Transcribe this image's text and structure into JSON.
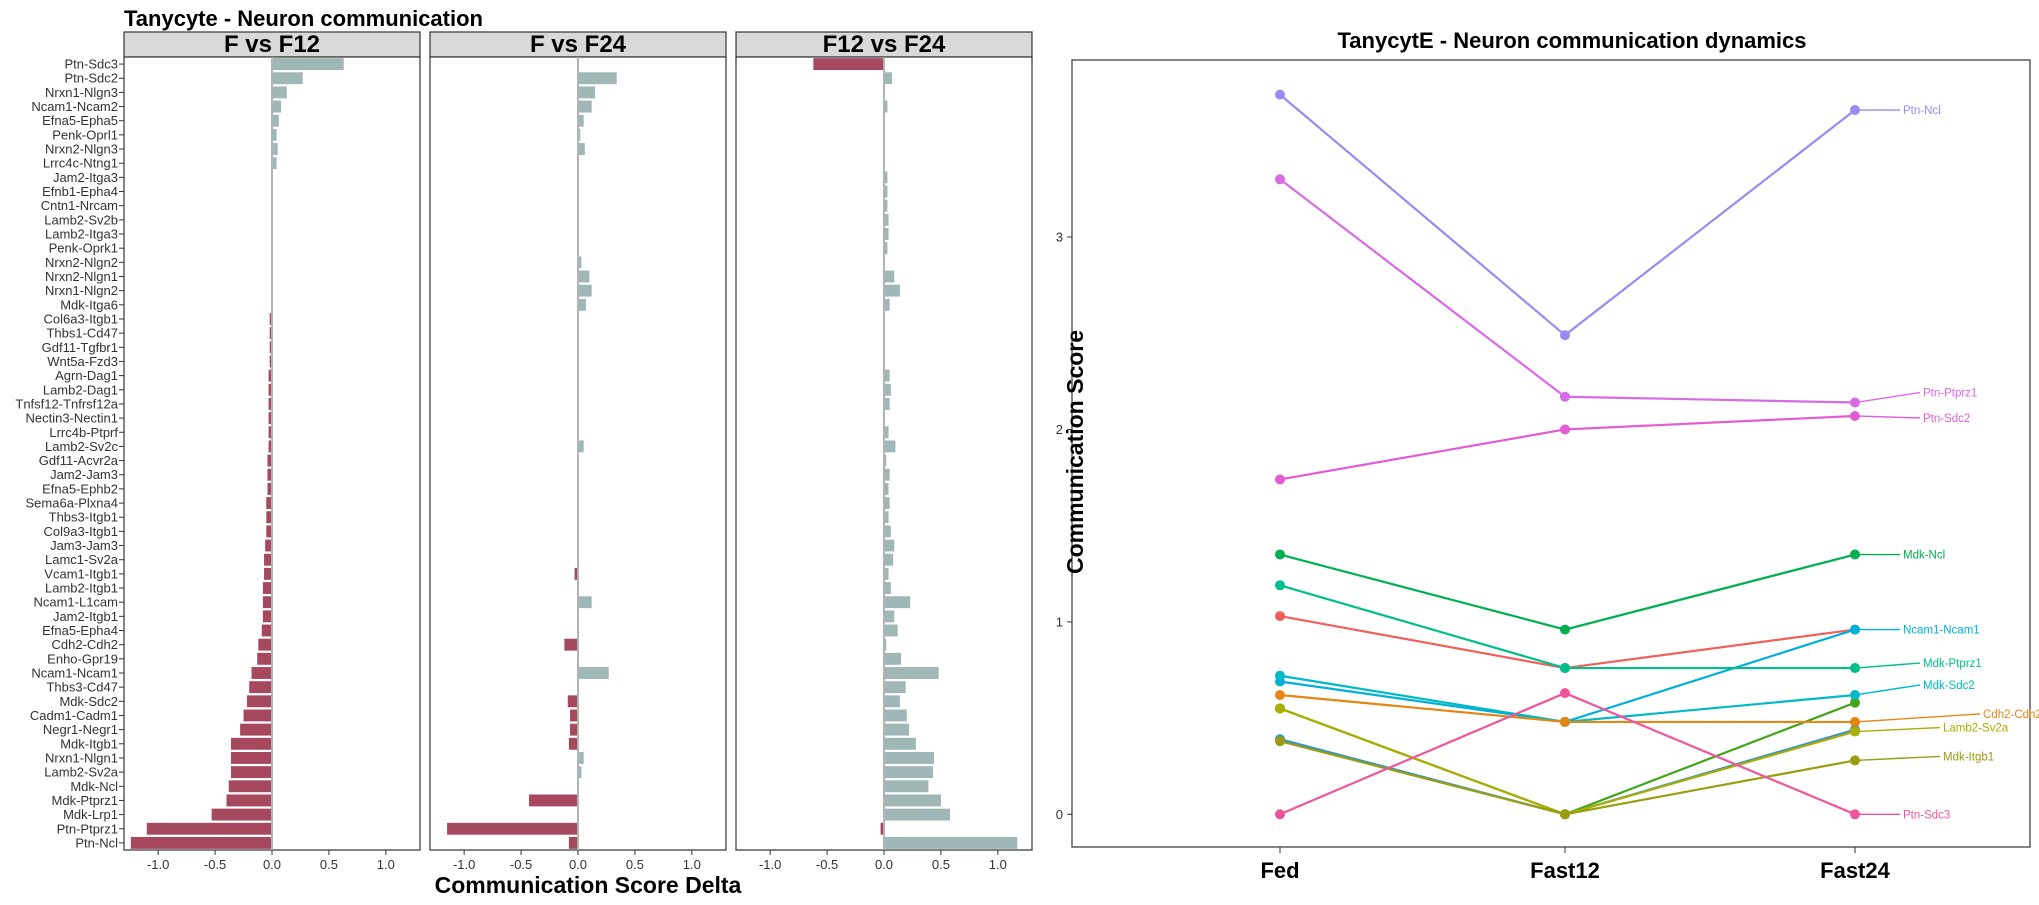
{
  "chart_data": [
    {
      "type": "bar",
      "orientation": "horizontal",
      "title": "Tanycyte - Neuron communication",
      "xlabel": "Communication Score Delta",
      "xlim": [
        -1.3,
        1.3
      ],
      "xticks": [
        -1.0,
        -0.5,
        0.0,
        0.5,
        1.0
      ],
      "xtick_labels": [
        "-1.0",
        "-0.5",
        "0.0",
        "0.5",
        "1.0"
      ],
      "positive_color": "#9fb7b7",
      "negative_color": "#a6495f",
      "categories": [
        "Ptn-Sdc3",
        "Ptn-Sdc2",
        "Nrxn1-Nlgn3",
        "Ncam1-Ncam2",
        "Efna5-Epha5",
        "Penk-Oprl1",
        "Nrxn2-Nlgn3",
        "Lrrc4c-Ntng1",
        "Jam2-Itga3",
        "Efnb1-Epha4",
        "Cntn1-Nrcam",
        "Lamb2-Sv2b",
        "Lamb2-Itga3",
        "Penk-Oprk1",
        "Nrxn2-Nlgn2",
        "Nrxn2-Nlgn1",
        "Nrxn1-Nlgn2",
        "Mdk-Itga6",
        "Col6a3-Itgb1",
        "Thbs1-Cd47",
        "Gdf11-Tgfbr1",
        "Wnt5a-Fzd3",
        "Agrn-Dag1",
        "Lamb2-Dag1",
        "Tnfsf12-Tnfrsf12a",
        "Nectin3-Nectin1",
        "Lrrc4b-Ptprf",
        "Lamb2-Sv2c",
        "Gdf11-Acvr2a",
        "Jam2-Jam3",
        "Efna5-Ephb2",
        "Sema6a-Plxna4",
        "Thbs3-Itgb1",
        "Col9a3-Itgb1",
        "Jam3-Jam3",
        "Lamc1-Sv2a",
        "Vcam1-Itgb1",
        "Lamb2-Itgb1",
        "Ncam1-L1cam",
        "Jam2-Itgb1",
        "Efna5-Epha4",
        "Cdh2-Cdh2",
        "Enho-Gpr19",
        "Ncam1-Ncam1",
        "Thbs3-Cd47",
        "Mdk-Sdc2",
        "Cadm1-Cadm1",
        "Negr1-Negr1",
        "Mdk-Itgb1",
        "Nrxn1-Nlgn1",
        "Lamb2-Sv2a",
        "Mdk-Ncl",
        "Mdk-Ptprz1",
        "Mdk-Lrp1",
        "Ptn-Ptprz1",
        "Ptn-Ncl"
      ],
      "series": [
        {
          "name": "F vs F12",
          "values": [
            0.63,
            0.27,
            0.13,
            0.08,
            0.06,
            0.04,
            0.05,
            0.04,
            0,
            0,
            0,
            0,
            0,
            0,
            0,
            0,
            0,
            0,
            -0.02,
            -0.02,
            -0.02,
            -0.02,
            -0.03,
            -0.03,
            -0.03,
            -0.03,
            -0.03,
            -0.03,
            -0.04,
            -0.04,
            -0.04,
            -0.05,
            -0.05,
            -0.05,
            -0.06,
            -0.07,
            -0.07,
            -0.08,
            -0.08,
            -0.08,
            -0.09,
            -0.12,
            -0.13,
            -0.18,
            -0.2,
            -0.22,
            -0.25,
            -0.28,
            -0.36,
            -0.36,
            -0.36,
            -0.38,
            -0.4,
            -0.53,
            -1.1,
            -1.24
          ]
        },
        {
          "name": "F vs F24",
          "values": [
            0,
            0.34,
            0.15,
            0.12,
            0.05,
            0.02,
            0.06,
            0,
            0,
            0,
            0,
            0,
            0,
            0,
            0.03,
            0.1,
            0.12,
            0.07,
            0,
            0,
            0,
            0,
            0,
            0,
            0,
            0,
            0,
            0.05,
            0,
            0,
            0,
            0,
            0,
            0,
            0,
            0,
            -0.03,
            0,
            0.12,
            0,
            0,
            -0.12,
            0,
            0.27,
            0,
            -0.09,
            -0.07,
            -0.07,
            -0.08,
            0.05,
            0.03,
            0,
            -0.43,
            0,
            -1.15,
            -0.08
          ]
        },
        {
          "name": "F12 vs F24",
          "values": [
            -0.62,
            0.07,
            0,
            0.03,
            0,
            0,
            0,
            0,
            0.03,
            0.03,
            0.03,
            0.04,
            0.04,
            0.03,
            0,
            0.09,
            0.14,
            0.05,
            0,
            0,
            0,
            0,
            0.05,
            0.06,
            0.05,
            0,
            0.04,
            0.1,
            0.02,
            0.05,
            0.04,
            0.05,
            0.04,
            0.06,
            0.09,
            0.08,
            0.04,
            0.06,
            0.23,
            0.09,
            0.12,
            0.02,
            0.15,
            0.48,
            0.19,
            0.14,
            0.2,
            0.22,
            0.28,
            0.44,
            0.43,
            0.39,
            0.5,
            0.58,
            -0.03,
            1.17
          ]
        }
      ]
    },
    {
      "type": "line",
      "title": "TanycytE - Neuron communication dynamics",
      "ylabel": "Communication Score",
      "xlabel": "",
      "categories": [
        "Fed",
        "Fast12",
        "Fast24"
      ],
      "ylim": [
        -0.17,
        3.92
      ],
      "yticks": [
        0,
        1,
        2,
        3
      ],
      "ytick_labels": [
        "0",
        "1",
        "2",
        "3"
      ],
      "series": [
        {
          "name": "Ptn-Ncl",
          "color": "#9b8af2",
          "values": [
            3.74,
            2.49,
            3.66
          ]
        },
        {
          "name": "Ptn-Ptprz1",
          "color": "#d86ae6",
          "values": [
            3.3,
            2.17,
            2.14
          ]
        },
        {
          "name": "Ptn-Sdc2",
          "color": "#e35bd3",
          "values": [
            1.74,
            2.0,
            2.07
          ]
        },
        {
          "name": "Mdk-Ncl",
          "color": "#00b050",
          "values": [
            1.35,
            0.96,
            1.35
          ]
        },
        {
          "name": "Ncam1-Ncam1",
          "color": "#00b0d8",
          "values": [
            0.69,
            0.48,
            0.96
          ]
        },
        {
          "name": "Mdk-Ptprz1",
          "color": "#00bf8a",
          "values": [
            1.19,
            0.76,
            0.76
          ]
        },
        {
          "name": "Mdk-Sdc2",
          "color": "#00b9c6",
          "values": [
            0.72,
            0.48,
            0.62
          ]
        },
        {
          "name": "Cdh2-Cdh2",
          "color": "#e68613",
          "values": [
            0.62,
            0.48,
            0.48
          ]
        },
        {
          "name": "Lamb2-Sv2a",
          "color": "#abad00",
          "values": [
            0.55,
            0.0,
            0.43
          ]
        },
        {
          "name": "Mdk-Itgb1",
          "color": "#9a9d0f",
          "values": [
            0.38,
            0.0,
            0.28
          ]
        },
        {
          "name": "Ptn-Sdc3",
          "color": "#f0559c",
          "values": [
            0.0,
            0.63,
            0.0
          ]
        },
        {
          "name": "",
          "color": "#f0605a",
          "values": [
            1.03,
            0.76,
            0.96
          ]
        },
        {
          "name": "",
          "color": "#44a51a",
          "values": [
            0.55,
            0.0,
            0.58
          ]
        },
        {
          "name": "",
          "color": "#2f93d3",
          "values": [
            0.39,
            0.0,
            0.44
          ]
        }
      ]
    }
  ]
}
